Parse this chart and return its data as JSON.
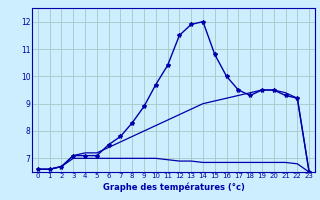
{
  "title": "Graphe des températures (°c)",
  "bg_color": "#cceeff",
  "grid_color": "#aacccc",
  "line_color": "#0000aa",
  "xlim": [
    -0.5,
    23.5
  ],
  "ylim": [
    6.5,
    12.5
  ],
  "xticks": [
    0,
    1,
    2,
    3,
    4,
    5,
    6,
    7,
    8,
    9,
    10,
    11,
    12,
    13,
    14,
    15,
    16,
    17,
    18,
    19,
    20,
    21,
    22,
    23
  ],
  "yticks": [
    7,
    8,
    9,
    10,
    11,
    12
  ],
  "curve1_x": [
    0,
    1,
    2,
    3,
    4,
    5,
    6,
    7,
    8,
    9,
    10,
    11,
    12,
    13,
    14,
    15,
    16,
    17,
    18,
    19,
    20,
    21,
    22,
    23
  ],
  "curve1_y": [
    6.6,
    6.6,
    6.7,
    7.1,
    7.1,
    7.1,
    7.5,
    7.8,
    8.3,
    8.9,
    9.7,
    10.4,
    11.5,
    11.9,
    12.0,
    10.8,
    10.0,
    9.5,
    9.3,
    9.5,
    9.5,
    9.3,
    9.2,
    6.5
  ],
  "curve2_x": [
    0,
    1,
    2,
    3,
    4,
    5,
    6,
    7,
    8,
    9,
    10,
    11,
    12,
    13,
    14,
    15,
    16,
    17,
    18,
    19,
    20,
    21,
    22,
    23
  ],
  "curve2_y": [
    6.6,
    6.6,
    6.7,
    7.1,
    7.2,
    7.2,
    7.4,
    7.6,
    7.8,
    8.0,
    8.2,
    8.4,
    8.6,
    8.8,
    9.0,
    9.1,
    9.2,
    9.3,
    9.4,
    9.5,
    9.5,
    9.4,
    9.2,
    6.5
  ],
  "curve3_x": [
    0,
    1,
    2,
    3,
    4,
    5,
    6,
    7,
    8,
    9,
    10,
    11,
    12,
    13,
    14,
    15,
    16,
    17,
    18,
    19,
    20,
    21,
    22,
    23
  ],
  "curve3_y": [
    6.6,
    6.6,
    6.7,
    7.0,
    7.0,
    7.0,
    7.0,
    7.0,
    7.0,
    7.0,
    7.0,
    6.95,
    6.9,
    6.9,
    6.85,
    6.85,
    6.85,
    6.85,
    6.85,
    6.85,
    6.85,
    6.85,
    6.8,
    6.5
  ]
}
